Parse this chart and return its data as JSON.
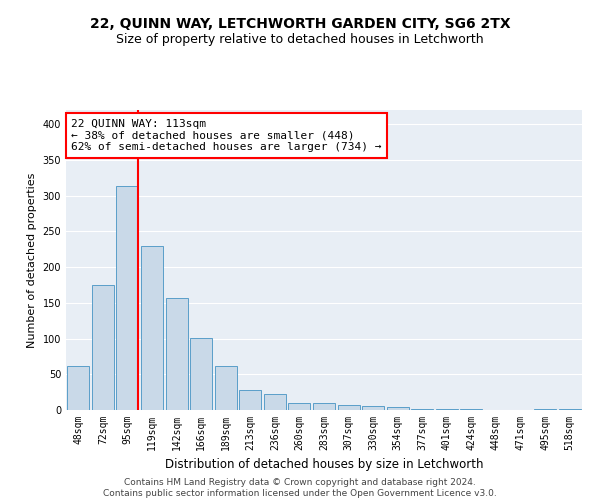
{
  "title": "22, QUINN WAY, LETCHWORTH GARDEN CITY, SG6 2TX",
  "subtitle": "Size of property relative to detached houses in Letchworth",
  "xlabel": "Distribution of detached houses by size in Letchworth",
  "ylabel": "Number of detached properties",
  "categories": [
    "48sqm",
    "72sqm",
    "95sqm",
    "119sqm",
    "142sqm",
    "166sqm",
    "189sqm",
    "213sqm",
    "236sqm",
    "260sqm",
    "283sqm",
    "307sqm",
    "330sqm",
    "354sqm",
    "377sqm",
    "401sqm",
    "424sqm",
    "448sqm",
    "471sqm",
    "495sqm",
    "518sqm"
  ],
  "values": [
    62,
    175,
    313,
    229,
    157,
    101,
    62,
    28,
    22,
    10,
    10,
    7,
    5,
    4,
    2,
    1,
    1,
    0,
    0,
    1,
    2
  ],
  "bar_color": "#c9d9e8",
  "bar_edge_color": "#5a9ec9",
  "vline_color": "red",
  "annotation_text": "22 QUINN WAY: 113sqm\n← 38% of detached houses are smaller (448)\n62% of semi-detached houses are larger (734) →",
  "annotation_box_color": "white",
  "annotation_box_edge": "red",
  "ylim": [
    0,
    420
  ],
  "yticks": [
    0,
    50,
    100,
    150,
    200,
    250,
    300,
    350,
    400
  ],
  "background_color": "#e8eef5",
  "footer_text": "Contains HM Land Registry data © Crown copyright and database right 2024.\nContains public sector information licensed under the Open Government Licence v3.0.",
  "title_fontsize": 10,
  "subtitle_fontsize": 9,
  "xlabel_fontsize": 8.5,
  "ylabel_fontsize": 8,
  "tick_fontsize": 7,
  "annotation_fontsize": 8,
  "footer_fontsize": 6.5
}
